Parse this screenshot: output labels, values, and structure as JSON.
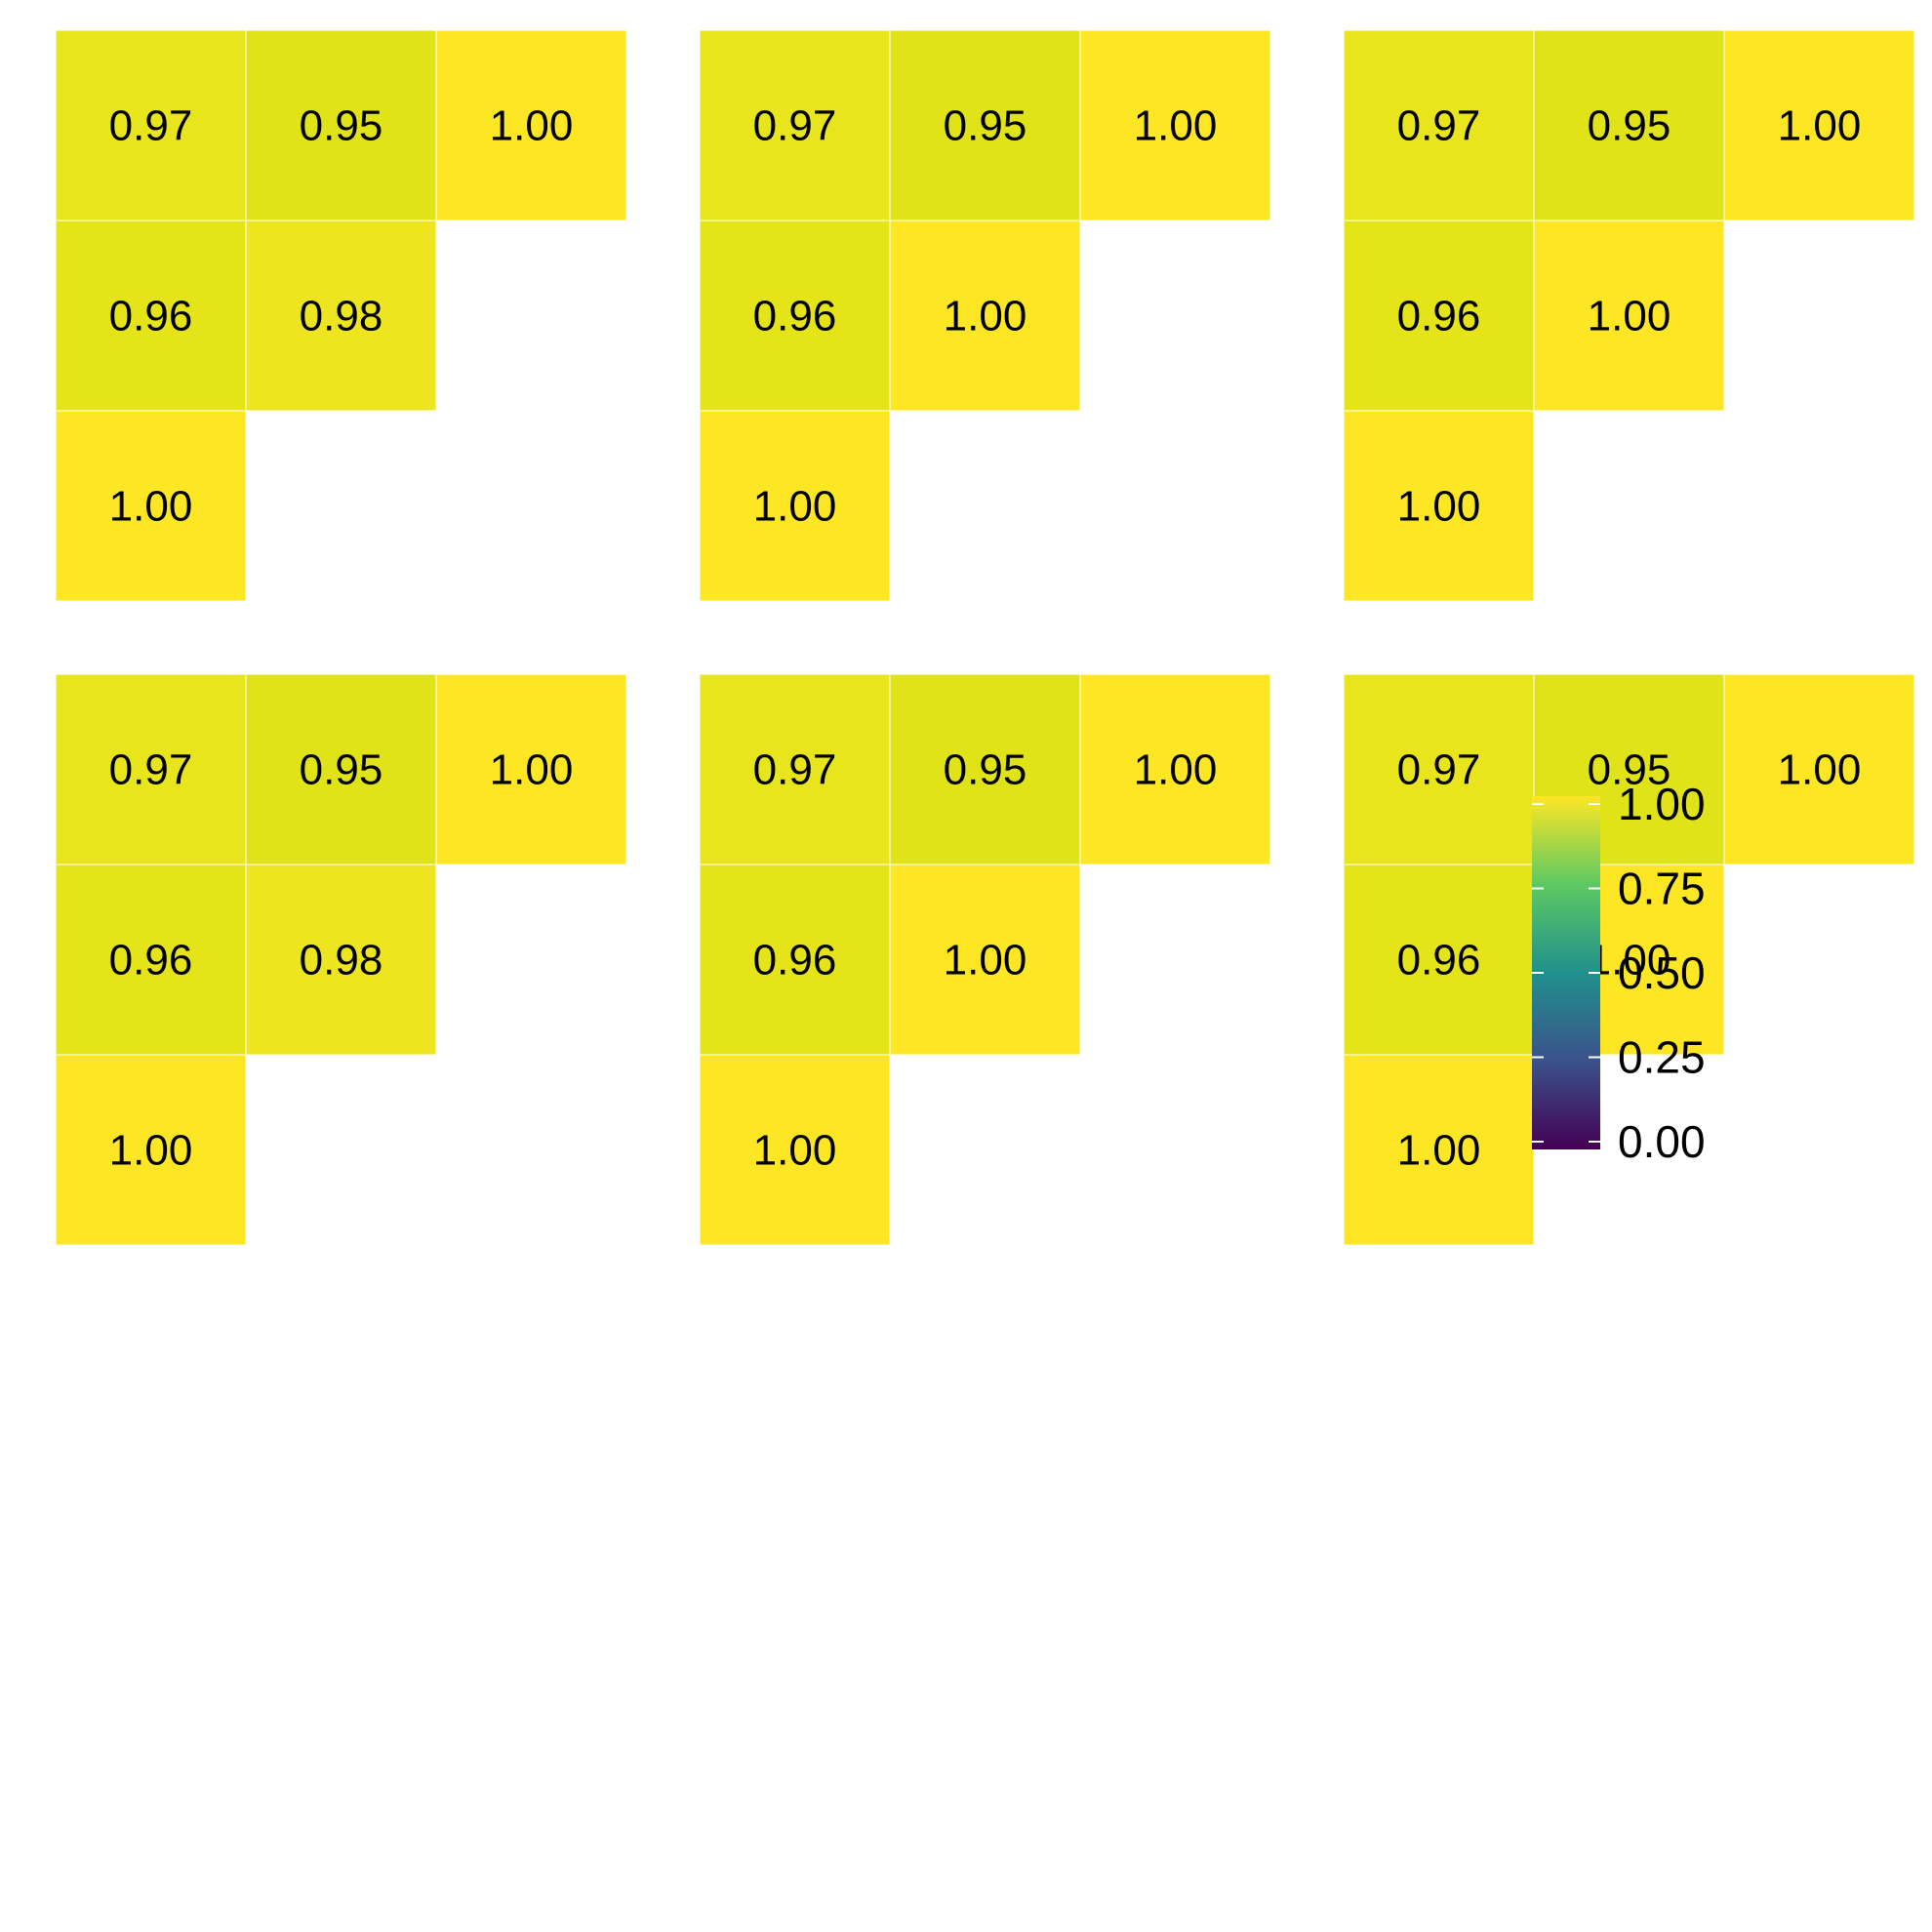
{
  "chart_data": {
    "type": "heatmap",
    "layout": "6 lower-triangular correlation panels in a 3x3 grid with a shared colorbar",
    "color_scale": {
      "name": "viridis",
      "range": [
        0,
        1
      ],
      "ticks": [
        "0.00",
        "0.25",
        "0.50",
        "0.75",
        "1.00"
      ],
      "colors": [
        "#440154",
        "#3b528b",
        "#21908c",
        "#5dc963",
        "#fde725"
      ]
    },
    "panels": [
      {
        "rows": [
          [
            "0.97",
            "0.95",
            "1.00"
          ],
          [
            "0.96",
            "0.98"
          ],
          [
            "1.00"
          ]
        ]
      },
      {
        "rows": [
          [
            "0.97",
            "0.95",
            "1.00"
          ],
          [
            "0.96",
            "1.00"
          ],
          [
            "1.00"
          ]
        ]
      },
      {
        "rows": [
          [
            "0.97",
            "0.95",
            "1.00"
          ],
          [
            "0.96",
            "1.00"
          ],
          [
            "1.00"
          ]
        ]
      },
      {
        "rows": [
          [
            "0.97",
            "0.95",
            "1.00"
          ],
          [
            "0.96",
            "0.98"
          ],
          [
            "1.00"
          ]
        ]
      },
      {
        "rows": [
          [
            "0.97",
            "0.95",
            "1.00"
          ],
          [
            "0.96",
            "1.00"
          ],
          [
            "1.00"
          ]
        ]
      },
      {
        "rows": [
          [
            "0.97",
            "0.95",
            "1.00"
          ],
          [
            "0.96",
            "1.00"
          ],
          [
            "1.00"
          ]
        ]
      }
    ]
  }
}
